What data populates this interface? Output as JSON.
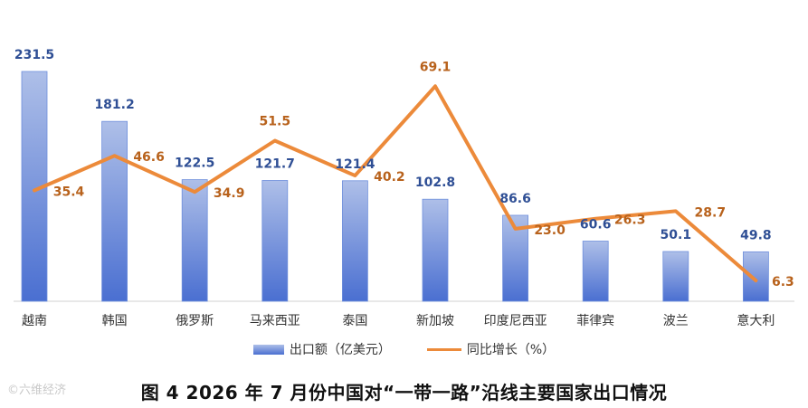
{
  "chart_data": {
    "type": "bar",
    "categories": [
      "越南",
      "韩国",
      "俄罗斯",
      "马来西亚",
      "泰国",
      "新加坡",
      "印度尼西亚",
      "菲律宾",
      "波兰",
      "意大利"
    ],
    "series": [
      {
        "name": "出口额（亿美元）",
        "type": "bar",
        "values": [
          231.5,
          181.2,
          122.5,
          121.7,
          121.4,
          102.8,
          86.6,
          60.6,
          50.1,
          49.8
        ]
      },
      {
        "name": "同比增长（%）",
        "type": "line",
        "values": [
          35.4,
          46.6,
          34.9,
          51.5,
          40.2,
          69.1,
          23.0,
          26.3,
          28.7,
          6.3
        ]
      }
    ],
    "title": "图 4  2026 年 7 月份中国对“一带一路”沿线主要国家出口情况",
    "legend_position": "bottom",
    "colors": {
      "bar_top": "#aebfe8",
      "bar_bottom": "#4a6fd1",
      "bar_label": "#2f4f95",
      "line": "#ec8a3a",
      "line_label": "#b8621c"
    }
  },
  "legend": {
    "bar_label": "出口额（亿美元）",
    "line_label": "同比增长（%）"
  },
  "caption": "图 4  2026 年 7 月份中国对“一带一路”沿线主要国家出口情况",
  "watermark": "©六维经济"
}
